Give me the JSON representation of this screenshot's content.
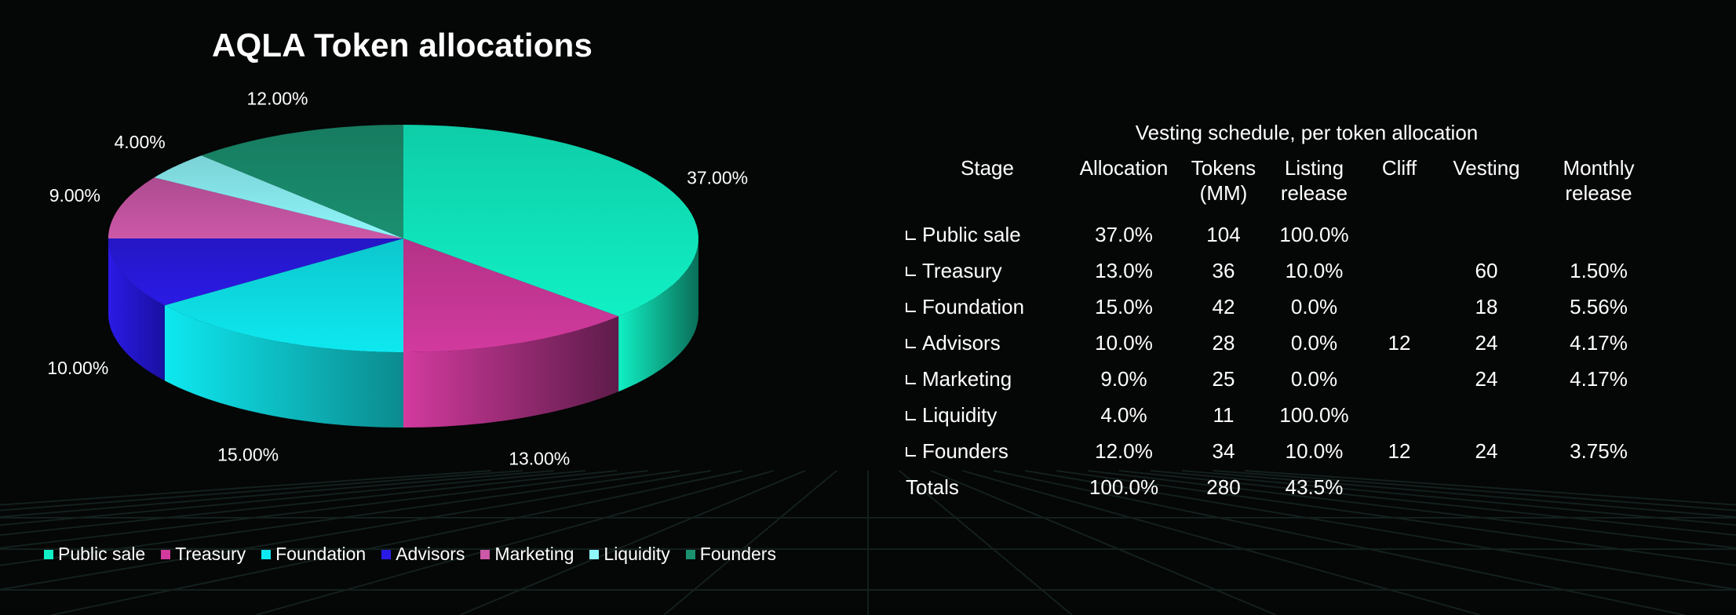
{
  "chart_data": [
    {
      "type": "pie",
      "title": "AQLA Token allocations",
      "categories": [
        "Public sale",
        "Treasury",
        "Foundation",
        "Advisors",
        "Marketing",
        "Liquidity",
        "Founders"
      ],
      "values": [
        37.0,
        13.0,
        15.0,
        10.0,
        9.0,
        4.0,
        12.0
      ],
      "value_labels": [
        "37.00%",
        "13.00%",
        "15.00%",
        "10.00%",
        "9.00%",
        "4.00%",
        "12.00%"
      ],
      "colors": [
        "#10f0c4",
        "#d23a9e",
        "#0ee8f0",
        "#2a1ae6",
        "#cc58a8",
        "#8ff6fa",
        "#1a9070"
      ],
      "side_colors": [
        "#0a6e58",
        "#5e1c4a",
        "#0c8b8e",
        "#1a10a0",
        "#6a2a5a",
        "#4a9ea0",
        "#0d4a3a"
      ],
      "legend_position": "bottom",
      "style": "3d"
    },
    {
      "type": "table",
      "title": "Vesting schedule, per token allocation",
      "columns": [
        "Stage",
        "Allocation",
        "Tokens (MM)",
        "Listing release",
        "Cliff",
        "Vesting",
        "Monthly release"
      ],
      "rows": [
        [
          "Public sale",
          "37.0%",
          "104",
          "100.0%",
          "",
          "",
          ""
        ],
        [
          "Treasury",
          "13.0%",
          "36",
          "10.0%",
          "",
          "60",
          "1.50%"
        ],
        [
          "Foundation",
          "15.0%",
          "42",
          "0.0%",
          "",
          "18",
          "5.56%"
        ],
        [
          "Advisors",
          "10.0%",
          "28",
          "0.0%",
          "12",
          "24",
          "4.17%"
        ],
        [
          "Marketing",
          "9.0%",
          "25",
          "0.0%",
          "",
          "24",
          "4.17%"
        ],
        [
          "Liquidity",
          "4.0%",
          "11",
          "100.0%",
          "",
          "",
          ""
        ],
        [
          "Founders",
          "12.0%",
          "34",
          "10.0%",
          "12",
          "24",
          "3.75%"
        ],
        [
          "Totals",
          "100.0%",
          "280",
          "43.5%",
          "",
          "",
          ""
        ]
      ]
    }
  ],
  "table": {
    "title": "Vesting schedule, per token allocation",
    "headers": {
      "stage": "Stage",
      "allocation": "Allocation",
      "tokens_line1": "Tokens",
      "tokens_line2": "(MM)",
      "listing_line1": "Listing",
      "listing_line2": "release",
      "cliff": "Cliff",
      "vesting": "Vesting",
      "monthly": "Monthly release"
    },
    "rows": [
      {
        "stage": "Public sale",
        "allocation": "37.0%",
        "tokens": "104",
        "listing": "100.0%",
        "cliff": "",
        "vesting": "",
        "monthly": ""
      },
      {
        "stage": "Treasury",
        "allocation": "13.0%",
        "tokens": "36",
        "listing": "10.0%",
        "cliff": "",
        "vesting": "60",
        "monthly": "1.50%"
      },
      {
        "stage": "Foundation",
        "allocation": "15.0%",
        "tokens": "42",
        "listing": "0.0%",
        "cliff": "",
        "vesting": "18",
        "monthly": "5.56%"
      },
      {
        "stage": "Advisors",
        "allocation": "10.0%",
        "tokens": "28",
        "listing": "0.0%",
        "cliff": "12",
        "vesting": "24",
        "monthly": "4.17%"
      },
      {
        "stage": "Marketing",
        "allocation": "9.0%",
        "tokens": "25",
        "listing": "0.0%",
        "cliff": "",
        "vesting": "24",
        "monthly": "4.17%"
      },
      {
        "stage": "Liquidity",
        "allocation": "4.0%",
        "tokens": "11",
        "listing": "100.0%",
        "cliff": "",
        "vesting": "",
        "monthly": ""
      },
      {
        "stage": "Founders",
        "allocation": "12.0%",
        "tokens": "34",
        "listing": "10.0%",
        "cliff": "12",
        "vesting": "24",
        "monthly": "3.75%"
      }
    ],
    "totals": {
      "stage": "Totals",
      "allocation": "100.0%",
      "tokens": "280",
      "listing": "43.5%"
    }
  },
  "colors": {
    "background": "#050606",
    "grid_line": "#13201e",
    "text": "#ffffff"
  }
}
